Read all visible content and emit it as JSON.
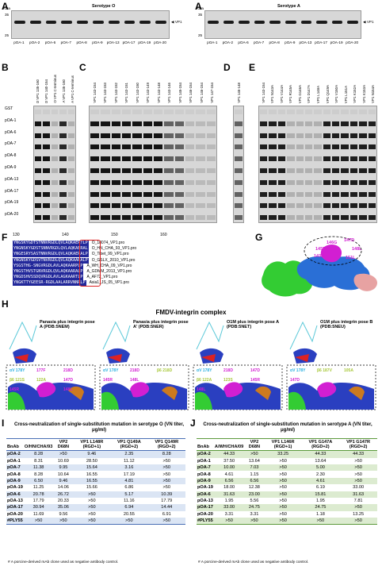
{
  "panels": {
    "A1": {
      "letter": "A",
      "title": "Serotype O",
      "kda": "KDa",
      "markers": [
        "35",
        "25"
      ],
      "arrow": "VP1",
      "lanes": [
        "pOA-1",
        "pOA-2",
        "pOA-6",
        "pOA-7",
        "pOA-8",
        "pOA-9",
        "pOA-13",
        "pOA-17",
        "pOA-19",
        "pOA-20"
      ]
    },
    "A2": {
      "letter": "A",
      "title": "Serotype A",
      "kda": "KDa",
      "markers": [
        "35",
        "25"
      ],
      "arrow": "VP1",
      "lanes": [
        "pOA-1",
        "pOA-2",
        "pOA-6",
        "pOA-7",
        "pOA-8",
        "pOA-9",
        "pOA-13",
        "pOA-17",
        "pOA-19",
        "pOA-20"
      ]
    },
    "B": {
      "letter": "B",
      "cols": [
        "O VP1 135-160",
        "O VP1 140-154",
        "O VP1 C-terminus",
        "A VP1 135-160",
        "A VP1 C-terminus"
      ],
      "rows": [
        "GST",
        "pOA-1",
        "pOA-6",
        "pOA-7",
        "pOA-8",
        "pOA-9",
        "pOA-13",
        "pOA-17",
        "pOA-19",
        "pOA-20"
      ]
    },
    "C": {
      "letter": "C",
      "cols": [
        "VP1 143-154",
        "VP1 143-153",
        "VP1 143-152",
        "VP1 143-151",
        "VP1 143-150",
        "VP1 143-149",
        "VP1 143-148",
        "VP1 143-146",
        "VP1 145-154",
        "VP1 146-154",
        "VP1 146-154",
        "VP1 147-154"
      ]
    },
    "D": {
      "letter": "D",
      "cols": [
        "VP1 145-148"
      ]
    },
    "E": {
      "letter": "E",
      "cols": [
        "VP1 143-154",
        "VP1 N143A",
        "VP1 V144A",
        "VP1 R145A",
        "VP1 G146A",
        "VP1 D147A",
        "VP1 L148A",
        "VP1 Q149A",
        "VP1 V150A",
        "VP1 L151A",
        "VP1 K152A",
        "VP1 K153A",
        "VP1 N154A"
      ]
    },
    "F": {
      "letter": "F",
      "ticks": [
        "130",
        "140",
        "150",
        "160"
      ],
      "sequences": [
        {
          "seq": "YNGSKYGDTSTNNVRGDLQVLAQKAERTLP",
          "name": "O_18074_VP1.pro"
        },
        {
          "seq": "YNGNSKYGDSTSNNVRGDLQVLAQKAERAL",
          "name": "O_HN_CHA_93_VP1.pro"
        },
        {
          "seq": "YNGESRYSASTNNVRGDLQVLAQKAERALP",
          "name": "O_Tibet_99_VP1.pro"
        },
        {
          "seq": "YNGNSKYGDSVTNVRGDLQVLAQKAARALP",
          "name": "O_GSLX_2010_VP1.pro"
        },
        {
          "seq": "YSGSTHG-SNGVRGDLAVLAQKAARPLP",
          "name": "A_WH_CHA_09_VP1.pro"
        },
        {
          "seq": "YNGSTHVSTGNVRGDLQVLAQKAARALP",
          "name": "A_GDMM_2013_VP1.pro"
        },
        {
          "seq": "YNGDSHVSSDQVRGDLAVLAGKAARTLP",
          "name": "A_AF72_VP1.pro"
        },
        {
          "seq": "YNGKTTYGEESR-RGDLAALARRVNNRLP",
          "name": "Asia1_JS_05_VP1.pro"
        }
      ]
    },
    "G": {
      "letter": "G",
      "labels": [
        "146G",
        "147D",
        "145R",
        "148L",
        "143N",
        "151L"
      ]
    },
    "H": {
      "letter": "H",
      "title": "FMDV-integrin complex",
      "structures": [
        {
          "caption": "Panasia plus integrin pose A (PDB:5NEM)",
          "labels": [
            "αV 178Y",
            "177F",
            "218D",
            "β6 121S",
            "122A",
            "147D",
            "145R",
            "143N",
            "148L"
          ]
        },
        {
          "caption": "Panasia plus integrin pose A' (PDB:5NER)",
          "labels": [
            "αV 178Y",
            "218D",
            "β6 218D",
            "145R",
            "148L"
          ]
        },
        {
          "caption": "O1M plus integrin pose A (PDB:5NET)",
          "labels": [
            "αV 178Y",
            "218D",
            "147D",
            "β6 122A",
            "123S",
            "145R",
            "148L",
            "151L"
          ]
        },
        {
          "caption": "O1M plus integrin pose B (PDB:5NEU)",
          "labels": [
            "αV 178Y",
            "β6 187V",
            "105A",
            "147D"
          ]
        }
      ]
    },
    "I": {
      "letter": "I",
      "title": "Cross-neutralization of single-substitution mutation in serotype O (VN titer, μg/ml)",
      "headers": [
        "BnAb",
        "O/HN/CHA/93",
        "VP2 D68N",
        "VP1 L148R (RGD+1)",
        "VP1 Q149A (RGD+2)",
        "VP1 Q149R (RGD+2)"
      ],
      "rows": [
        [
          "pOA-2",
          "8.28",
          ">50",
          "9.46",
          "2.35",
          "8.28"
        ],
        [
          "pOA-1",
          "8.31",
          "10.69",
          "28.50",
          "11.12",
          ">50"
        ],
        [
          "pOA-7",
          "11.38",
          "9.95",
          "15.64",
          "3.16",
          ">50"
        ],
        [
          "pOA-8",
          "8.28",
          "10.64",
          "16.55",
          "17.19",
          ">50"
        ],
        [
          "pOA-9",
          "6.50",
          "9.46",
          "16.55",
          "4.81",
          ">50"
        ],
        [
          "pOA-19",
          "11.25",
          "14.06",
          "15.66",
          "6.86",
          ">50"
        ],
        [
          "pOA-6",
          "20.78",
          "26.72",
          ">50",
          "5.17",
          "10.39"
        ],
        [
          "pOA-13",
          "17.79",
          "20.33",
          ">50",
          "11.16",
          "17.79"
        ],
        [
          "pOA-17",
          "30.94",
          "35.06",
          ">50",
          "6.94",
          "14.44"
        ],
        [
          "pOA-20",
          "11.69",
          "9.56",
          ">50",
          "20.55",
          "6.91"
        ],
        [
          "#PLY55",
          ">50",
          ">50",
          ">50",
          ">50",
          ">50"
        ]
      ],
      "footnote": "# A porcine-derived mAb clone used as negative antibody control."
    },
    "J": {
      "letter": "J",
      "title": "Cross-neutralization of single-substitution mutation in serotype A (VN titer, μg/ml)",
      "headers": [
        "BnAb",
        "A/WH/CHA/09",
        "VP2 D68N",
        "VP1 L146R (RGD+1)",
        "VP1 G147A (RGD+2)",
        "VP1 G147R (RGD+2)"
      ],
      "rows": [
        [
          "pOA-2",
          "44.33",
          ">50",
          "33.25",
          "44.33",
          "44.33"
        ],
        [
          "pOA-1",
          "37.50",
          "13.64",
          ">50",
          "13.64",
          ">50"
        ],
        [
          "pOA-7",
          "10.00",
          "7.03",
          ">50",
          "5.00",
          ">50"
        ],
        [
          "pOA-8",
          "4.61",
          "1.15",
          ">50",
          "2.30",
          ">50"
        ],
        [
          "pOA-9",
          "6.56",
          "6.56",
          ">50",
          "4.61",
          ">50"
        ],
        [
          "pOA-19",
          "18.00",
          "12.38",
          ">50",
          "6.19",
          "33.00"
        ],
        [
          "pOA-6",
          "31.63",
          "23.00",
          ">50",
          "15.81",
          "31.63"
        ],
        [
          "pOA-13",
          "1.95",
          "5.56",
          ">50",
          "1.95",
          "7.81"
        ],
        [
          "pOA-17",
          "33.00",
          "24.75",
          ">50",
          "24.75",
          ">50"
        ],
        [
          "pOA-20",
          "3.31",
          "3.31",
          ">50",
          "1.18",
          "13.25"
        ],
        [
          "#PLY55",
          ">50",
          ">50",
          ">50",
          ">50",
          ">50"
        ]
      ],
      "footnote": "# A porcine-derived mAb clone used as negative antibody control."
    }
  },
  "colors": {
    "table_I_accent": "#4a6fb5",
    "table_J_accent": "#5c9a3c",
    "alignment_blue": "#22289a",
    "residue_magenta": "#d21fd2",
    "antibody_green": "#33cc33",
    "vp_blue": "#2a6fd6"
  }
}
